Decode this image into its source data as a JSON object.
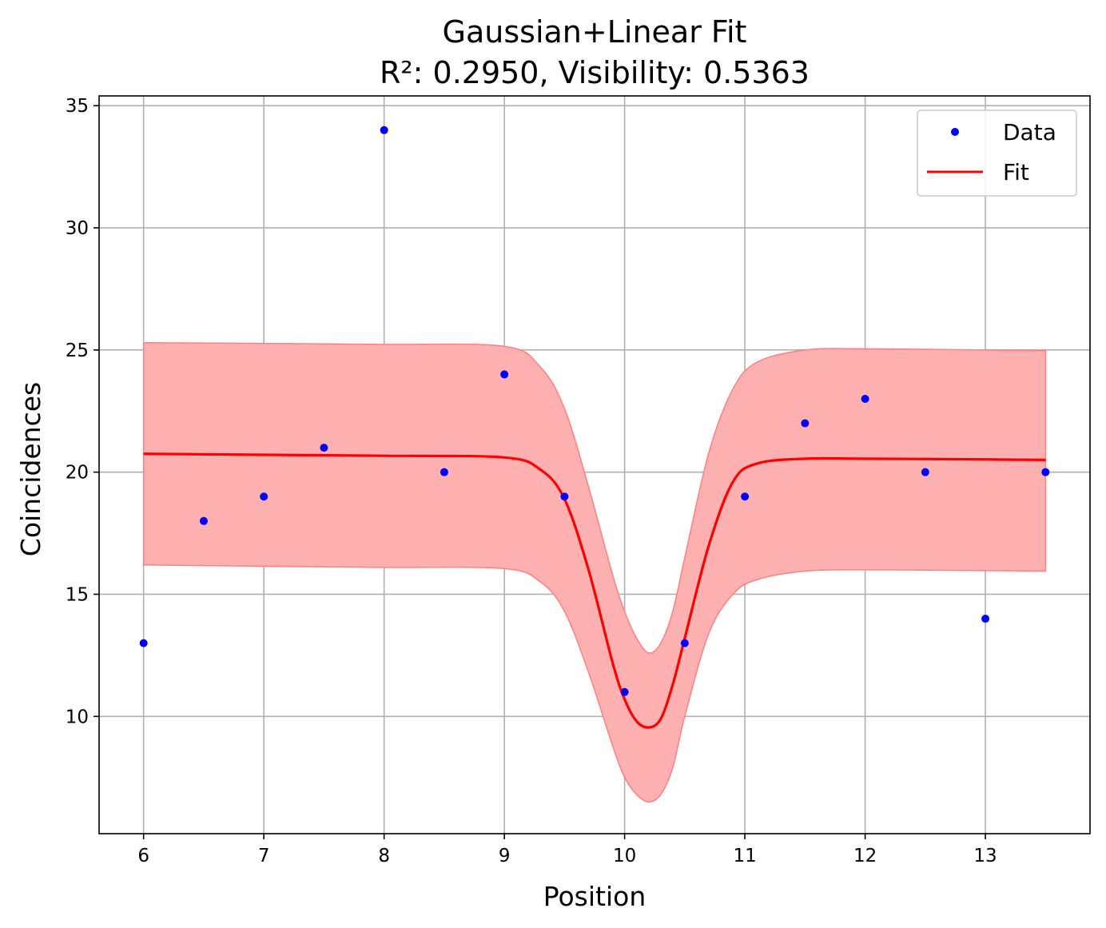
{
  "chart_data": {
    "type": "scatter",
    "title_line1": "Gaussian+Linear Fit",
    "title_line2": "R²: 0.2950, Visibility: 0.5363",
    "xlabel": "Position",
    "ylabel": "Coincidences",
    "xlim": [
      5.63,
      13.87
    ],
    "ylim": [
      5.2,
      35.4
    ],
    "xticks": [
      6,
      7,
      8,
      9,
      10,
      11,
      12,
      13
    ],
    "yticks": [
      10,
      15,
      20,
      25,
      30,
      35
    ],
    "grid": true,
    "legend_position": "top-right",
    "colors": {
      "data": "#0000ff",
      "fit": "#ff0000",
      "band_fill": "#ffb0b0",
      "band_edge": "#ff8080",
      "grid": "#b0b0b0"
    },
    "series": [
      {
        "name": "Data",
        "kind": "points",
        "x": [
          6,
          6.5,
          7,
          7.5,
          8,
          8.5,
          9,
          9.5,
          10,
          10.5,
          11,
          11.5,
          12,
          12.5,
          13,
          13.5
        ],
        "y": [
          13,
          18,
          19,
          21,
          34,
          20,
          24,
          19,
          11,
          13,
          19,
          22,
          23,
          20,
          14,
          20
        ]
      },
      {
        "name": "Fit",
        "kind": "line",
        "x": [
          6,
          7,
          8,
          9,
          9.3,
          9.5,
          9.7,
          9.9,
          10.0,
          10.1,
          10.2,
          10.3,
          10.4,
          10.5,
          10.7,
          10.9,
          11.1,
          11.5,
          12,
          13,
          13.5
        ],
        "y": [
          20.75,
          20.71,
          20.67,
          20.6,
          20.1,
          18.9,
          16.0,
          12.2,
          10.7,
          9.8,
          9.55,
          9.9,
          11.3,
          13.2,
          17.0,
          19.6,
          20.35,
          20.55,
          20.55,
          20.52,
          20.5
        ]
      },
      {
        "name": "",
        "kind": "band",
        "x": [
          6,
          7,
          8,
          9,
          9.3,
          9.5,
          9.7,
          9.9,
          10.0,
          10.1,
          10.2,
          10.3,
          10.4,
          10.5,
          10.7,
          10.9,
          11.1,
          11.5,
          12,
          13,
          13.5
        ],
        "upper": [
          25.3,
          25.27,
          25.23,
          25.15,
          24.3,
          22.6,
          19.4,
          15.8,
          14.3,
          13.2,
          12.6,
          13.0,
          14.3,
          16.5,
          20.8,
          23.4,
          24.5,
          25.0,
          25.05,
          25.0,
          24.97
        ],
        "lower": [
          16.2,
          16.15,
          16.1,
          16.05,
          15.5,
          14.3,
          11.8,
          8.8,
          7.5,
          6.8,
          6.5,
          6.8,
          7.9,
          10.0,
          13.4,
          15.0,
          15.6,
          15.95,
          16.0,
          15.97,
          15.95
        ]
      }
    ]
  }
}
